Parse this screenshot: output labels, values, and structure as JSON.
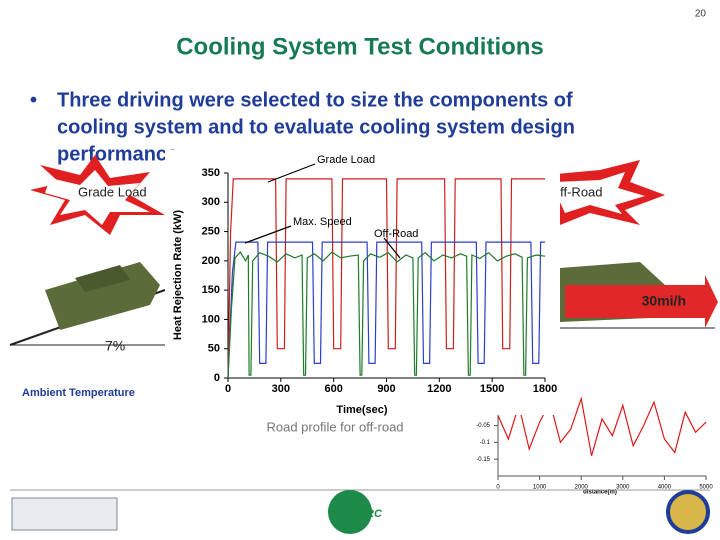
{
  "page_number": "20",
  "title": "Cooling System Test Conditions",
  "bullet_lines": [
    "Three driving were selected to size the components of",
    "cooling system and to evaluate cooling system design",
    "performance"
  ],
  "left_scene": {
    "label": "Grade Load",
    "grade": "7%",
    "ambient": "Ambient Temperature"
  },
  "right_scene": {
    "label": "Off-Road",
    "speed": "30mi/h"
  },
  "road_caption": "Road profile for off-road",
  "logos": {
    "arc": "ARC"
  },
  "chart_data": [
    {
      "type": "line",
      "ylabel": "Heat Rejection Rate (kW)",
      "xlabel": "Time(sec)",
      "xlim": [
        0,
        1800
      ],
      "xticks": [
        0,
        300,
        600,
        900,
        1200,
        1500,
        1800
      ],
      "ylim": [
        0,
        350
      ],
      "yticks": [
        0,
        50,
        100,
        150,
        200,
        250,
        300,
        350
      ],
      "series": [
        {
          "name": "Grade Load",
          "color": "#cc1f1f",
          "x": [
            0,
            15,
            30,
            270,
            280,
            320,
            330,
            590,
            600,
            640,
            650,
            900,
            910,
            950,
            960,
            1230,
            1240,
            1280,
            1290,
            1550,
            1560,
            1600,
            1610,
            1800
          ],
          "values": [
            0,
            250,
            340,
            340,
            50,
            50,
            340,
            340,
            50,
            50,
            340,
            340,
            50,
            50,
            340,
            340,
            50,
            50,
            340,
            340,
            50,
            50,
            340,
            340
          ]
        },
        {
          "name": "Max. Speed",
          "color": "#2b3fc8",
          "x": [
            0,
            25,
            45,
            170,
            180,
            215,
            225,
            480,
            490,
            525,
            535,
            790,
            800,
            835,
            845,
            1100,
            1110,
            1145,
            1155,
            1410,
            1420,
            1455,
            1465,
            1720,
            1730,
            1765,
            1775,
            1800
          ],
          "values": [
            0,
            180,
            232,
            232,
            25,
            25,
            232,
            232,
            25,
            25,
            232,
            232,
            25,
            25,
            232,
            232,
            25,
            25,
            232,
            232,
            25,
            25,
            232,
            232,
            25,
            25,
            232,
            232
          ]
        },
        {
          "name": "Off-Road",
          "color": "#1f7a2a",
          "x": [
            0,
            20,
            40,
            70,
            100,
            115,
            120,
            130,
            140,
            180,
            230,
            280,
            330,
            380,
            420,
            430,
            440,
            450,
            490,
            540,
            590,
            640,
            690,
            740,
            750,
            760,
            770,
            810,
            860,
            910,
            960,
            1010,
            1050,
            1060,
            1070,
            1080,
            1120,
            1170,
            1220,
            1270,
            1320,
            1355,
            1365,
            1375,
            1385,
            1430,
            1480,
            1530,
            1580,
            1630,
            1670,
            1680,
            1690,
            1700,
            1750,
            1800
          ],
          "values": [
            0,
            120,
            205,
            215,
            200,
            210,
            5,
            5,
            200,
            214,
            208,
            198,
            212,
            205,
            210,
            5,
            5,
            205,
            212,
            200,
            215,
            205,
            208,
            210,
            5,
            5,
            200,
            212,
            206,
            214,
            198,
            210,
            205,
            5,
            5,
            205,
            214,
            200,
            210,
            205,
            212,
            208,
            5,
            5,
            210,
            204,
            214,
            200,
            208,
            212,
            206,
            5,
            5,
            205,
            210,
            208
          ]
        }
      ]
    },
    {
      "type": "line",
      "xlabel": "distance(m)",
      "xlim": [
        0,
        5000
      ],
      "xticks": [
        0,
        1000,
        2000,
        3000,
        4000,
        5000
      ],
      "ylim": [
        -0.2,
        0.05
      ],
      "yticks": [
        -0.15,
        -0.1,
        -0.05
      ],
      "series": [
        {
          "name": "Road profile",
          "color": "#e01818",
          "x": [
            0,
            250,
            500,
            750,
            1000,
            1250,
            1500,
            1750,
            2000,
            2250,
            2500,
            2750,
            3000,
            3250,
            3500,
            3750,
            4000,
            4250,
            4500,
            4750,
            5000
          ],
          "values": [
            -0.02,
            -0.09,
            0.01,
            -0.12,
            -0.04,
            0.02,
            -0.1,
            -0.06,
            0.03,
            -0.14,
            -0.03,
            -0.08,
            0.01,
            -0.11,
            -0.05,
            0.02,
            -0.09,
            -0.13,
            -0.01,
            -0.07,
            -0.04
          ]
        }
      ]
    }
  ]
}
